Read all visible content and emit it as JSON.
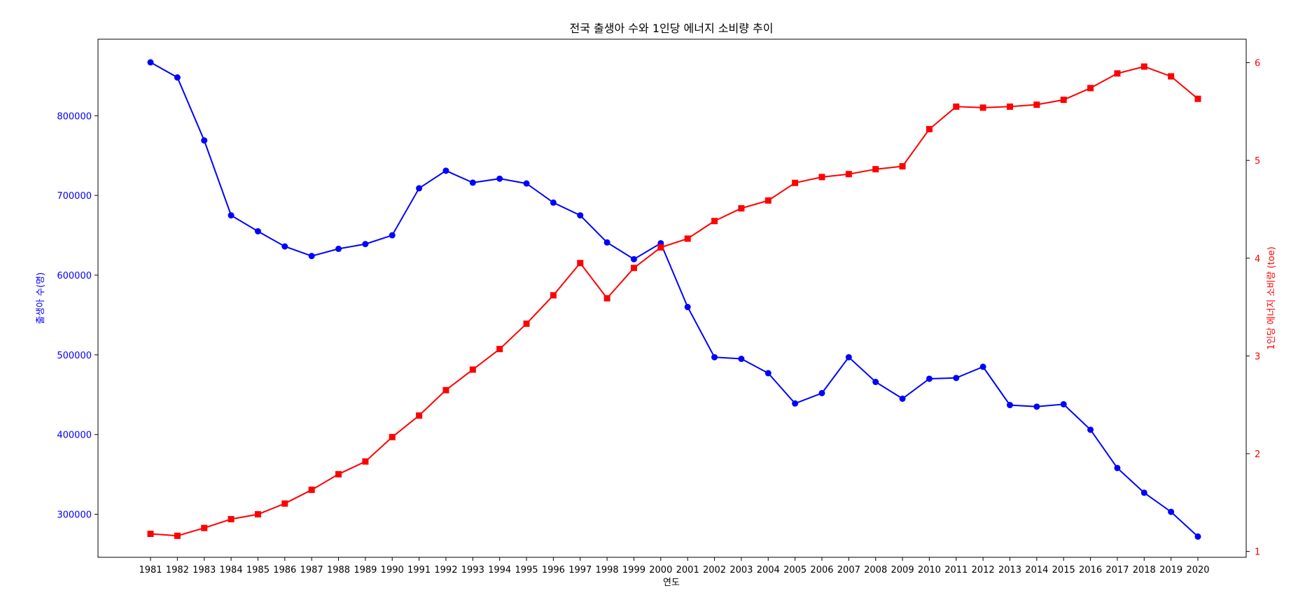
{
  "chart_data": {
    "type": "line",
    "title": "전국 출생아 수와 1인당 에너지 소비량 추이",
    "xlabel": "연도",
    "ylabel_left": "출생아 수(명)",
    "ylabel_right": "1인당 에너지 소비량 (toe)",
    "x": [
      1981,
      1982,
      1983,
      1984,
      1985,
      1986,
      1987,
      1988,
      1989,
      1990,
      1991,
      1992,
      1993,
      1994,
      1995,
      1996,
      1997,
      1998,
      1999,
      2000,
      2001,
      2002,
      2003,
      2004,
      2005,
      2006,
      2007,
      2008,
      2009,
      2010,
      2011,
      2012,
      2013,
      2014,
      2015,
      2016,
      2017,
      2018,
      2019,
      2020
    ],
    "left_ylim": [
      246000,
      896000
    ],
    "right_ylim": [
      0.94,
      6.24
    ],
    "left_ticks": [
      300000,
      400000,
      500000,
      600000,
      700000,
      800000
    ],
    "right_ticks": [
      1,
      2,
      3,
      4,
      5,
      6
    ],
    "grid": false,
    "series": [
      {
        "name": "",
        "axis": "left",
        "marker": "circle",
        "color": "#0000ff",
        "values": [
          867000,
          848000,
          769000,
          675000,
          655000,
          636000,
          624000,
          633000,
          639000,
          650000,
          709000,
          731000,
          716000,
          721000,
          715000,
          691000,
          675000,
          641000,
          620000,
          640000,
          560000,
          497000,
          495000,
          477000,
          439000,
          452000,
          497000,
          466000,
          445000,
          470000,
          471000,
          485000,
          437000,
          435000,
          438000,
          406000,
          358000,
          327000,
          303000,
          272000
        ]
      },
      {
        "name": "",
        "axis": "right",
        "marker": "square",
        "color": "#ff0000",
        "values": [
          1.18,
          1.16,
          1.24,
          1.33,
          1.38,
          1.49,
          1.63,
          1.79,
          1.92,
          2.17,
          2.39,
          2.65,
          2.86,
          3.07,
          3.33,
          3.62,
          3.95,
          3.59,
          3.9,
          4.11,
          4.2,
          4.38,
          4.51,
          4.59,
          4.77,
          4.83,
          4.86,
          4.91,
          4.94,
          5.32,
          5.55,
          5.54,
          5.55,
          5.57,
          5.62,
          5.74,
          5.89,
          5.96,
          5.86,
          5.63
        ]
      }
    ]
  },
  "colors": {
    "left_axis": "#0000ff",
    "right_axis": "#ff0000",
    "frame": "#000000"
  }
}
